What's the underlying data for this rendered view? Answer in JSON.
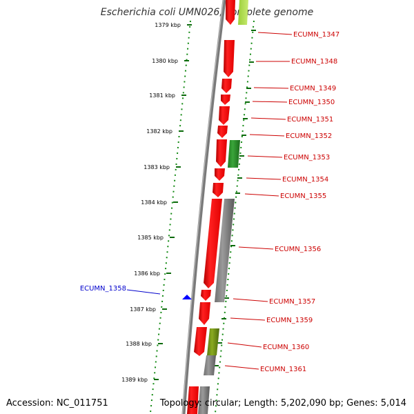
{
  "title": "Escherichia coli UMN026, complete genome",
  "footer": {
    "accession": "Accession: NC_011751",
    "summary": "Topology: circular; Length: 5,202,090 bp; Genes: 5,014"
  },
  "colors": {
    "backbone": "#808080",
    "forward_cds": "#ff0000",
    "tick": "#006400",
    "label_red": "#cc0000",
    "label_blue": "#0000cc"
  },
  "axis": {
    "unit": "kbp",
    "ticks": [
      "1379 kbp",
      "1380 kbp",
      "1381 kbp",
      "1382 kbp",
      "1383 kbp",
      "1384 kbp",
      "1385 kbp",
      "1386 kbp",
      "1387 kbp",
      "1388 kbp",
      "1389 kbp"
    ]
  },
  "genes": [
    {
      "label": "ECUMN_1347",
      "strand": "+",
      "color": "red"
    },
    {
      "label": "ECUMN_1348",
      "strand": "+",
      "color": "red"
    },
    {
      "label": "ECUMN_1349",
      "strand": "+",
      "color": "red"
    },
    {
      "label": "ECUMN_1350",
      "strand": "+",
      "color": "red"
    },
    {
      "label": "ECUMN_1351",
      "strand": "+",
      "color": "red"
    },
    {
      "label": "ECUMN_1352",
      "strand": "+",
      "color": "red"
    },
    {
      "label": "ECUMN_1353",
      "strand": "-",
      "color": "green"
    },
    {
      "label": "ECUMN_1354",
      "strand": "+",
      "color": "red"
    },
    {
      "label": "ECUMN_1355",
      "strand": "+",
      "color": "red"
    },
    {
      "label": "ECUMN_1356",
      "strand": "-",
      "color": "gray"
    },
    {
      "label": "ECUMN_1357",
      "strand": "+",
      "color": "red"
    },
    {
      "label": "ECUMN_1358",
      "strand": "marker",
      "color": "blue"
    },
    {
      "label": "ECUMN_1359",
      "strand": "+",
      "color": "red"
    },
    {
      "label": "ECUMN_1360",
      "strand": "-",
      "color": "olive"
    },
    {
      "label": "ECUMN_1361",
      "strand": "-",
      "color": "gray"
    }
  ]
}
